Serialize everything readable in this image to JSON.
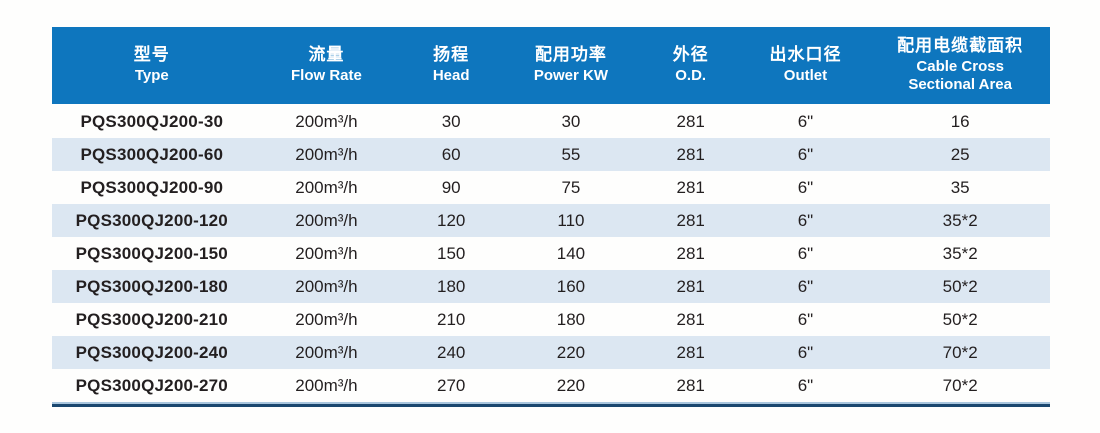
{
  "table": {
    "columns": [
      {
        "zh": "型号",
        "en": "Type"
      },
      {
        "zh": "流量",
        "en": "Flow Rate"
      },
      {
        "zh": "扬程",
        "en": "Head"
      },
      {
        "zh": "配用功率",
        "en": "Power KW"
      },
      {
        "zh": "外径",
        "en": "O.D."
      },
      {
        "zh": "出水口径",
        "en": "Outlet"
      },
      {
        "zh": "配用电缆截面积",
        "en": "Cable Cross Sectional Area",
        "en_lines": [
          "Cable Cross",
          "Sectional Area"
        ]
      }
    ],
    "rows": [
      [
        "PQS300QJ200-30",
        "200m³/h",
        "30",
        "30",
        "281",
        "6\"",
        "16"
      ],
      [
        "PQS300QJ200-60",
        "200m³/h",
        "60",
        "55",
        "281",
        "6\"",
        "25"
      ],
      [
        "PQS300QJ200-90",
        "200m³/h",
        "90",
        "75",
        "281",
        "6\"",
        "35"
      ],
      [
        "PQS300QJ200-120",
        "200m³/h",
        "120",
        "110",
        "281",
        "6\"",
        "35*2"
      ],
      [
        "PQS300QJ200-150",
        "200m³/h",
        "150",
        "140",
        "281",
        "6\"",
        "35*2"
      ],
      [
        "PQS300QJ200-180",
        "200m³/h",
        "180",
        "160",
        "281",
        "6\"",
        "50*2"
      ],
      [
        "PQS300QJ200-210",
        "200m³/h",
        "210",
        "180",
        "281",
        "6\"",
        "50*2"
      ],
      [
        "PQS300QJ200-240",
        "200m³/h",
        "240",
        "220",
        "281",
        "6\"",
        "70*2"
      ],
      [
        "PQS300QJ200-270",
        "200m³/h",
        "270",
        "220",
        "281",
        "6\"",
        "70*2"
      ]
    ],
    "column_widths_pct": [
      20,
      15,
      10,
      14,
      10,
      13,
      18
    ],
    "colors": {
      "header_bg": "#0e76be",
      "header_text": "#ffffff",
      "row_alt_bg": "#dce7f2",
      "row_bg": "#fefefd",
      "body_text": "#231f20",
      "bottom_rule_dark": "#1a476f",
      "bottom_rule_light": "#a9c6de"
    }
  }
}
